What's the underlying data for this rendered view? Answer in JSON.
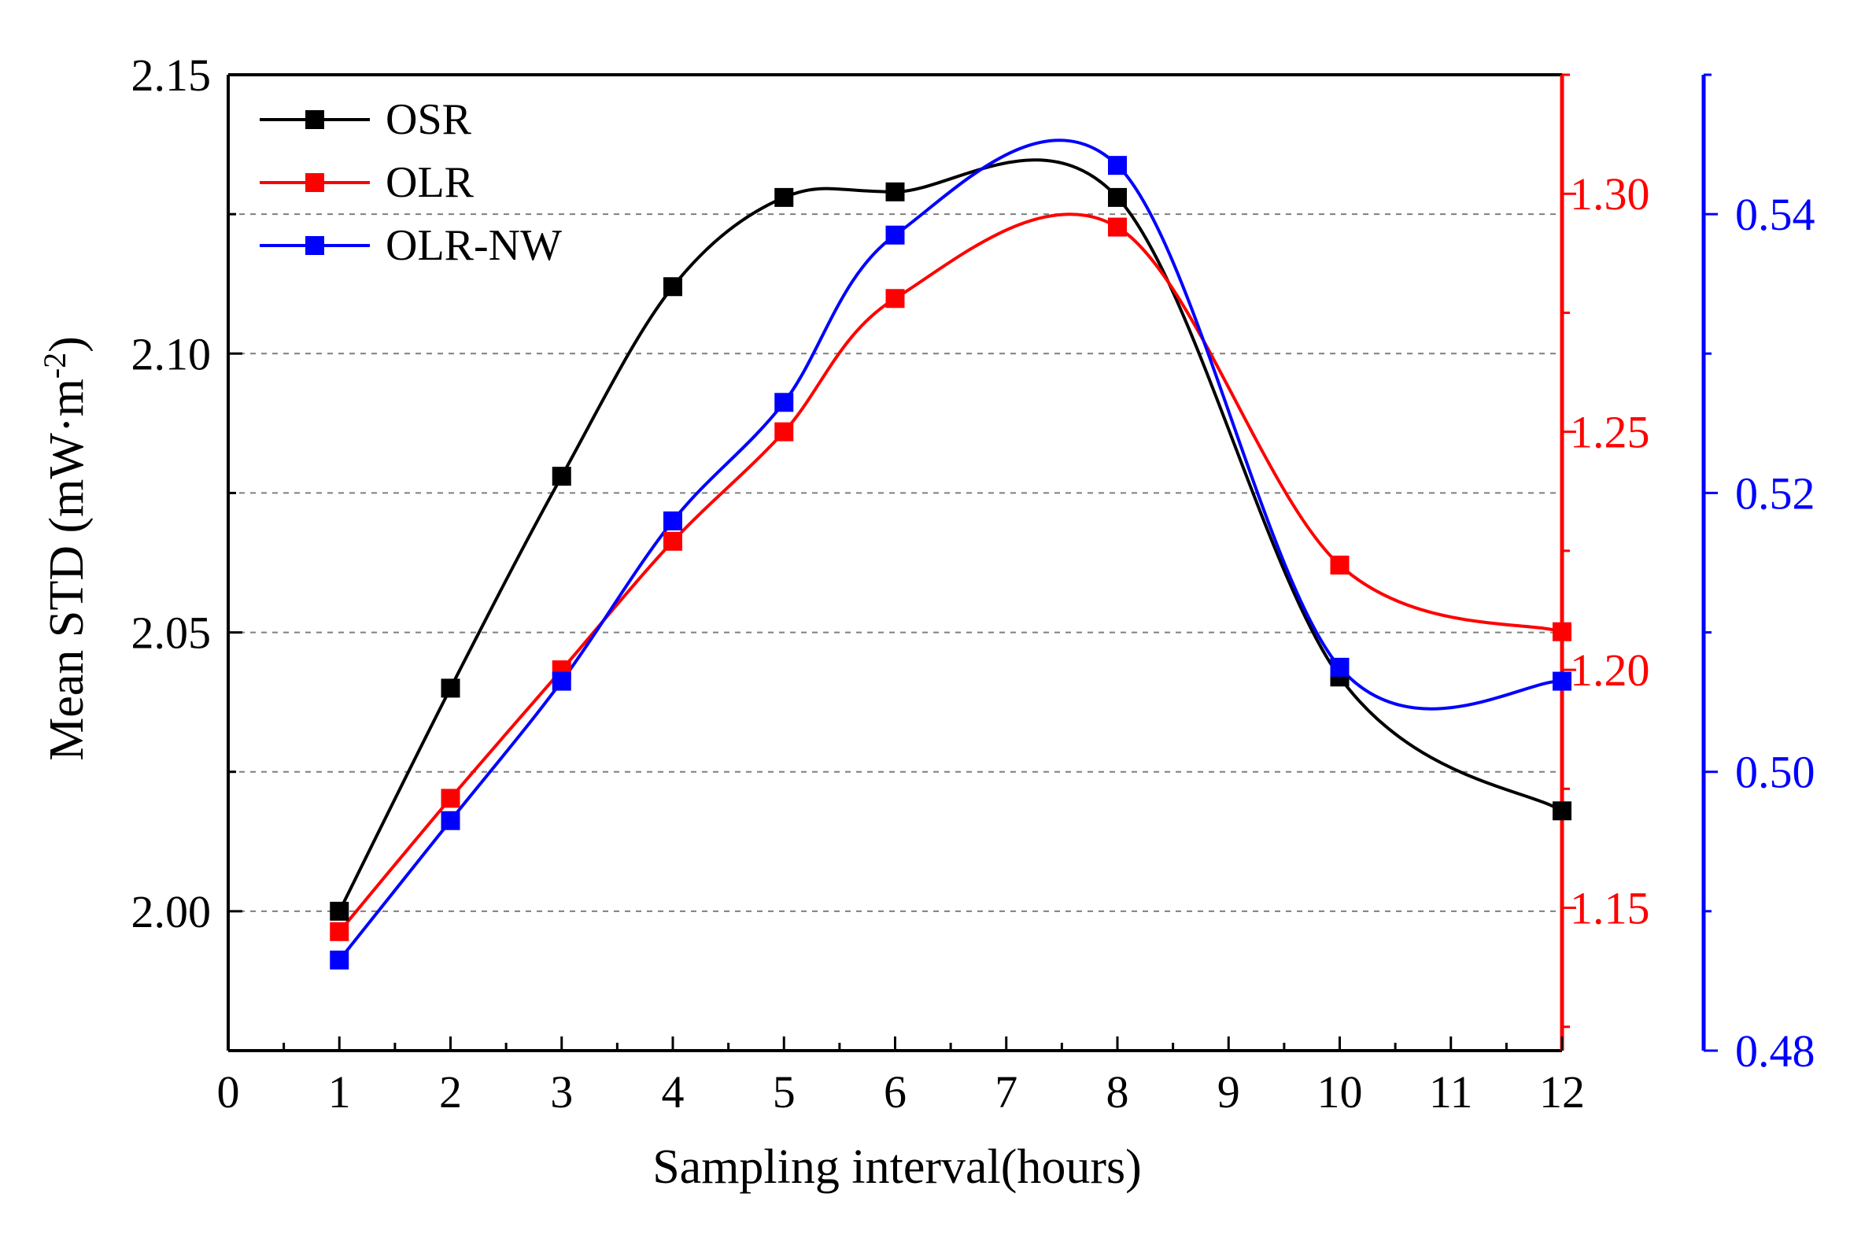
{
  "chart_data": {
    "type": "line",
    "xlabel": "Sampling interval(hours)",
    "ylabel": "Mean STD (mW·m",
    "ylabel_sup": "-2",
    "ylabel_close": ")",
    "xlim": [
      0,
      12
    ],
    "x_ticks": [
      0,
      1,
      2,
      3,
      4,
      5,
      6,
      7,
      8,
      9,
      10,
      11,
      12
    ],
    "x_tick_labels": [
      "0",
      "1",
      "2",
      "3",
      "4",
      "5",
      "6",
      "7",
      "8",
      "9",
      "10",
      "11",
      "12"
    ],
    "left_axis": {
      "ylim": [
        1.975,
        2.15
      ],
      "ticks": [
        2.0,
        2.05,
        2.1,
        2.15
      ],
      "tick_labels": [
        "2.00",
        "2.05",
        "2.10",
        "2.15"
      ],
      "color": "#000000"
    },
    "right_axis_red": {
      "ylim": [
        1.12,
        1.325
      ],
      "ticks": [
        1.15,
        1.2,
        1.25,
        1.3
      ],
      "tick_labels": [
        "1.15",
        "1.20",
        "1.25",
        "1.30"
      ],
      "color": "#ff0000"
    },
    "right_axis_blue": {
      "ylim": [
        0.48,
        0.55
      ],
      "ticks": [
        0.48,
        0.5,
        0.52,
        0.54
      ],
      "tick_labels": [
        "0.48",
        "0.50",
        "0.52",
        "0.54"
      ],
      "color": "#0000ff"
    },
    "grid": "horizontal dashed",
    "grid_values_left": [
      2.0,
      2.025,
      2.05,
      2.075,
      2.1,
      2.125
    ],
    "legend_position": "top-left",
    "series": [
      {
        "name": "OSR",
        "axis": "left_axis",
        "color": "#000000",
        "x": [
          1,
          2,
          3,
          4,
          5,
          6,
          8,
          10,
          12
        ],
        "values": [
          2.0,
          2.04,
          2.078,
          2.112,
          2.128,
          2.129,
          2.128,
          2.042,
          2.018
        ]
      },
      {
        "name": "OLR",
        "axis": "right_axis_red",
        "color": "#ff0000",
        "x": [
          1,
          2,
          3,
          4,
          5,
          6,
          8,
          10,
          12
        ],
        "values": [
          1.145,
          1.173,
          1.2,
          1.227,
          1.25,
          1.278,
          1.293,
          1.222,
          1.208
        ]
      },
      {
        "name": "OLR-NW",
        "axis": "right_axis_blue",
        "color": "#0000ff",
        "x": [
          1,
          2,
          3,
          4,
          5,
          6,
          8,
          10,
          12
        ],
        "values": [
          0.4865,
          0.4965,
          0.5065,
          0.518,
          0.5265,
          0.5385,
          0.5435,
          0.5075,
          0.5065
        ]
      }
    ]
  }
}
